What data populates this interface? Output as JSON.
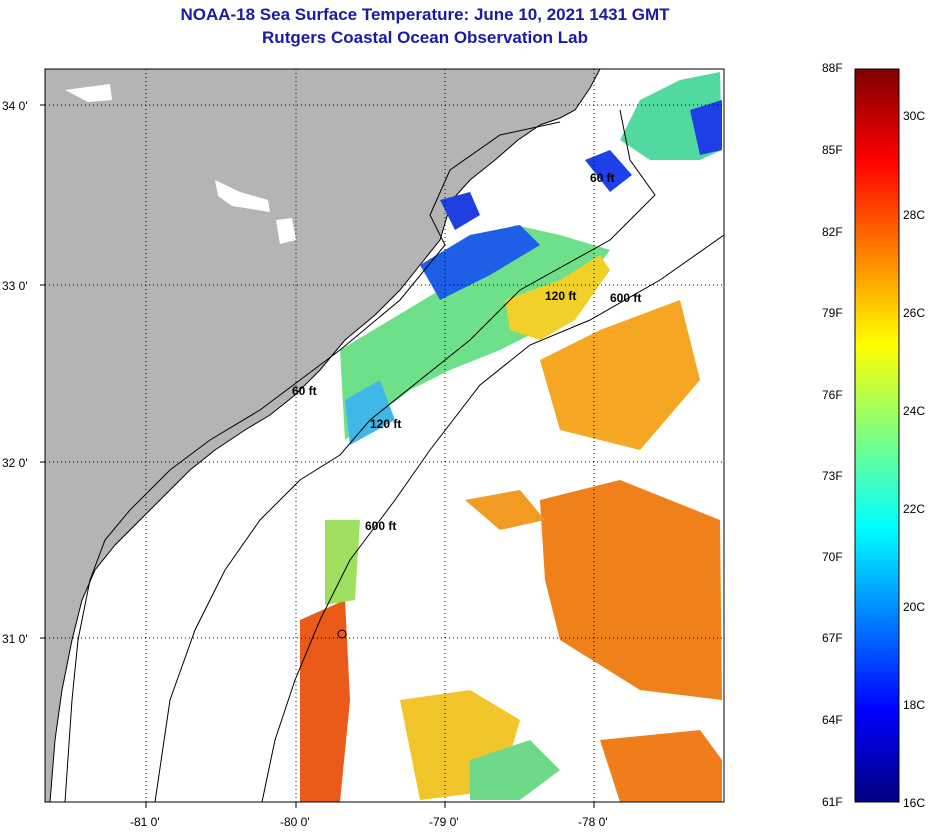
{
  "header": {
    "title": "NOAA-18 Sea Surface Temperature:  June 10, 2021 1431 GMT",
    "subtitle": "Rutgers Coastal Ocean Observation Lab"
  },
  "map": {
    "lat_labels": [
      "34 0'",
      "33 0'",
      "32 0'",
      "31 0'"
    ],
    "lon_labels": [
      "-81 0'",
      "-80 0'",
      "-79 0'",
      "-78 0'"
    ],
    "isobath_labels": [
      "60 ft",
      "60 ft",
      "120 ft",
      "120 ft",
      "600 ft",
      "600 ft"
    ],
    "colors": {
      "land": "#b4b4b4",
      "ocean": "#ffffff"
    }
  },
  "colorbar": {
    "fahrenheit": [
      "88F",
      "85F",
      "82F",
      "79F",
      "76F",
      "73F",
      "70F",
      "67F",
      "64F",
      "61F"
    ],
    "celsius": [
      "30C",
      "28C",
      "26C",
      "24C",
      "22C",
      "20C",
      "18C",
      "16C"
    ]
  }
}
